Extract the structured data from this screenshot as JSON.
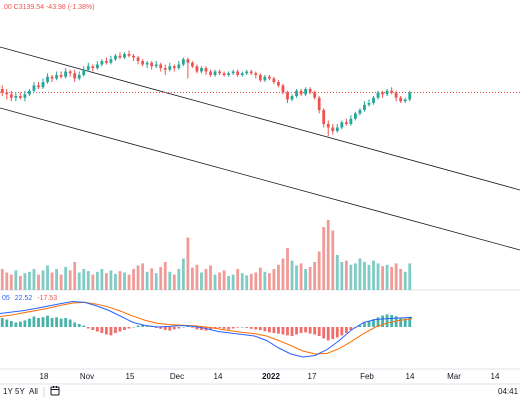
{
  "header": {
    "ohlc_text": ".00  C3139.54  -43.98 (-1.38%)",
    "ohlc_color": "#ef5350"
  },
  "macd_legend": {
    "prefix": "05",
    "value1": "22.52",
    "value2": "-17.53",
    "prefix_color": "#2962ff",
    "value1_color": "#2962ff",
    "value2_color": "#ef5350"
  },
  "range_buttons": [
    "1Y",
    "5Y",
    "All"
  ],
  "calendar_icon": "calendar-icon",
  "clock": "04:41",
  "colors": {
    "up": "#26a69a",
    "down": "#ef5350",
    "volume_up": "#80cbc4",
    "volume_down": "#f19b98",
    "macd_line": "#2962ff",
    "signal_line": "#ff6d00",
    "channel": "#131722",
    "price_line": "#ef5350"
  },
  "chart_data": [
    {
      "type": "candlestick",
      "x_labels": [
        "18",
        "Nov",
        "15",
        "Dec",
        "14",
        "2022",
        "17",
        "Feb",
        "14",
        "Mar",
        "14"
      ],
      "last_close": 3139.54,
      "channel": {
        "upper": {
          "from_date": "2021-09-20",
          "to": "2022-03-31",
          "shape": "descending"
        },
        "lower": {
          "from_date": "2021-09-20",
          "to": "2022-03-31",
          "shape": "descending"
        }
      },
      "candles": [
        [
          0.72,
          0.7,
          0.68,
          0.74
        ],
        [
          0.7,
          0.69,
          0.66,
          0.72
        ],
        [
          0.69,
          0.67,
          0.65,
          0.71
        ],
        [
          0.67,
          0.68,
          0.65,
          0.7
        ],
        [
          0.68,
          0.67,
          0.66,
          0.7
        ],
        [
          0.67,
          0.69,
          0.65,
          0.71
        ],
        [
          0.69,
          0.71,
          0.68,
          0.72
        ],
        [
          0.71,
          0.74,
          0.7,
          0.76
        ],
        [
          0.74,
          0.73,
          0.72,
          0.76
        ],
        [
          0.73,
          0.76,
          0.72,
          0.78
        ],
        [
          0.76,
          0.79,
          0.75,
          0.81
        ],
        [
          0.79,
          0.78,
          0.76,
          0.8
        ],
        [
          0.78,
          0.8,
          0.77,
          0.82
        ],
        [
          0.8,
          0.79,
          0.78,
          0.82
        ],
        [
          0.79,
          0.82,
          0.78,
          0.84
        ],
        [
          0.82,
          0.81,
          0.79,
          0.83
        ],
        [
          0.81,
          0.78,
          0.76,
          0.83
        ],
        [
          0.78,
          0.8,
          0.77,
          0.82
        ],
        [
          0.8,
          0.83,
          0.79,
          0.85
        ],
        [
          0.83,
          0.85,
          0.82,
          0.87
        ],
        [
          0.85,
          0.84,
          0.82,
          0.86
        ],
        [
          0.84,
          0.86,
          0.83,
          0.88
        ],
        [
          0.86,
          0.88,
          0.85,
          0.89
        ],
        [
          0.88,
          0.87,
          0.86,
          0.9
        ],
        [
          0.87,
          0.89,
          0.86,
          0.91
        ],
        [
          0.89,
          0.91,
          0.88,
          0.92
        ],
        [
          0.91,
          0.9,
          0.89,
          0.93
        ],
        [
          0.9,
          0.92,
          0.89,
          0.93
        ],
        [
          0.92,
          0.91,
          0.9,
          0.94
        ],
        [
          0.91,
          0.9,
          0.88,
          0.92
        ],
        [
          0.9,
          0.88,
          0.86,
          0.91
        ],
        [
          0.88,
          0.86,
          0.85,
          0.89
        ],
        [
          0.86,
          0.87,
          0.84,
          0.88
        ],
        [
          0.87,
          0.85,
          0.83,
          0.88
        ],
        [
          0.85,
          0.86,
          0.84,
          0.88
        ],
        [
          0.86,
          0.84,
          0.82,
          0.87
        ],
        [
          0.84,
          0.83,
          0.8,
          0.86
        ],
        [
          0.83,
          0.85,
          0.82,
          0.87
        ],
        [
          0.85,
          0.84,
          0.82,
          0.86
        ],
        [
          0.84,
          0.86,
          0.83,
          0.88
        ],
        [
          0.86,
          0.89,
          0.85,
          0.9
        ],
        [
          0.89,
          0.87,
          0.78,
          0.9
        ],
        [
          0.87,
          0.85,
          0.84,
          0.88
        ],
        [
          0.85,
          0.82,
          0.81,
          0.86
        ],
        [
          0.82,
          0.84,
          0.81,
          0.85
        ],
        [
          0.84,
          0.82,
          0.8,
          0.85
        ],
        [
          0.82,
          0.8,
          0.79,
          0.83
        ],
        [
          0.8,
          0.82,
          0.79,
          0.83
        ],
        [
          0.82,
          0.81,
          0.8,
          0.83
        ],
        [
          0.81,
          0.8,
          0.79,
          0.82
        ],
        [
          0.8,
          0.81,
          0.79,
          0.82
        ],
        [
          0.81,
          0.82,
          0.8,
          0.83
        ],
        [
          0.82,
          0.8,
          0.79,
          0.83
        ],
        [
          0.8,
          0.81,
          0.79,
          0.82
        ],
        [
          0.81,
          0.82,
          0.8,
          0.83
        ],
        [
          0.82,
          0.81,
          0.8,
          0.83
        ],
        [
          0.81,
          0.8,
          0.78,
          0.82
        ],
        [
          0.8,
          0.77,
          0.76,
          0.81
        ],
        [
          0.77,
          0.79,
          0.76,
          0.8
        ],
        [
          0.79,
          0.78,
          0.77,
          0.8
        ],
        [
          0.78,
          0.76,
          0.75,
          0.79
        ],
        [
          0.76,
          0.74,
          0.73,
          0.77
        ],
        [
          0.74,
          0.7,
          0.69,
          0.75
        ],
        [
          0.7,
          0.66,
          0.64,
          0.71
        ],
        [
          0.66,
          0.68,
          0.65,
          0.69
        ],
        [
          0.68,
          0.71,
          0.67,
          0.72
        ],
        [
          0.71,
          0.69,
          0.68,
          0.72
        ],
        [
          0.69,
          0.72,
          0.68,
          0.73
        ],
        [
          0.72,
          0.7,
          0.69,
          0.73
        ],
        [
          0.7,
          0.67,
          0.66,
          0.71
        ],
        [
          0.67,
          0.6,
          0.58,
          0.68
        ],
        [
          0.6,
          0.52,
          0.5,
          0.61
        ],
        [
          0.52,
          0.5,
          0.45,
          0.54
        ],
        [
          0.5,
          0.48,
          0.46,
          0.52
        ],
        [
          0.48,
          0.5,
          0.47,
          0.52
        ],
        [
          0.5,
          0.53,
          0.49,
          0.54
        ],
        [
          0.53,
          0.52,
          0.51,
          0.55
        ],
        [
          0.52,
          0.55,
          0.51,
          0.57
        ],
        [
          0.55,
          0.58,
          0.54,
          0.59
        ],
        [
          0.58,
          0.6,
          0.57,
          0.61
        ],
        [
          0.6,
          0.63,
          0.59,
          0.65
        ],
        [
          0.63,
          0.64,
          0.62,
          0.66
        ],
        [
          0.64,
          0.67,
          0.63,
          0.68
        ],
        [
          0.67,
          0.7,
          0.66,
          0.71
        ],
        [
          0.7,
          0.69,
          0.67,
          0.71
        ],
        [
          0.69,
          0.71,
          0.68,
          0.72
        ],
        [
          0.71,
          0.7,
          0.69,
          0.73
        ],
        [
          0.7,
          0.67,
          0.65,
          0.71
        ],
        [
          0.67,
          0.65,
          0.64,
          0.68
        ],
        [
          0.65,
          0.66,
          0.64,
          0.67
        ],
        [
          0.66,
          0.7,
          0.65,
          0.71
        ]
      ],
      "volume": [
        0.3,
        0.25,
        0.22,
        0.28,
        0.2,
        0.24,
        0.26,
        0.3,
        0.22,
        0.28,
        0.35,
        0.25,
        0.3,
        0.22,
        0.33,
        0.28,
        0.4,
        0.25,
        0.3,
        0.27,
        0.22,
        0.26,
        0.3,
        0.24,
        0.28,
        0.23,
        0.27,
        0.25,
        0.22,
        0.3,
        0.35,
        0.38,
        0.26,
        0.31,
        0.24,
        0.33,
        0.4,
        0.26,
        0.22,
        0.3,
        0.45,
        0.75,
        0.32,
        0.36,
        0.25,
        0.3,
        0.35,
        0.22,
        0.25,
        0.28,
        0.2,
        0.22,
        0.3,
        0.24,
        0.21,
        0.23,
        0.25,
        0.32,
        0.26,
        0.24,
        0.3,
        0.36,
        0.45,
        0.6,
        0.42,
        0.35,
        0.38,
        0.3,
        0.33,
        0.4,
        0.55,
        0.9,
        1.0,
        0.85,
        0.5,
        0.4,
        0.42,
        0.36,
        0.38,
        0.45,
        0.4,
        0.36,
        0.42,
        0.38,
        0.34,
        0.36,
        0.33,
        0.38,
        0.3,
        0.26,
        0.38
      ],
      "macd_hist": [
        0.3,
        0.25,
        0.2,
        0.15,
        0.18,
        0.22,
        0.28,
        0.35,
        0.3,
        0.33,
        0.38,
        0.3,
        0.32,
        0.28,
        0.3,
        0.25,
        0.15,
        0.1,
        0.05,
        -0.05,
        -0.1,
        -0.15,
        -0.2,
        -0.25,
        -0.28,
        -0.2,
        -0.15,
        -0.1,
        -0.05,
        0.0,
        0.05,
        0.08,
        0.04,
        0.02,
        -0.03,
        -0.06,
        -0.1,
        -0.12,
        -0.08,
        -0.05,
        0.0,
        0.05,
        -0.02,
        -0.08,
        -0.1,
        -0.12,
        -0.08,
        -0.05,
        -0.03,
        -0.06,
        -0.08,
        -0.05,
        -0.02,
        0.0,
        -0.03,
        -0.06,
        -0.08,
        -0.1,
        -0.14,
        -0.18,
        -0.2,
        -0.22,
        -0.25,
        -0.28,
        -0.3,
        -0.25,
        -0.2,
        -0.18,
        -0.22,
        -0.25,
        -0.3,
        -0.38,
        -0.45,
        -0.4,
        -0.35,
        -0.28,
        -0.2,
        -0.1,
        -0.02,
        0.06,
        0.14,
        0.2,
        0.26,
        0.32,
        0.38,
        0.42,
        0.4,
        0.36,
        0.3,
        0.28,
        0.34
      ],
      "macd_line": [
        0.45,
        0.5,
        0.55,
        0.62,
        0.7,
        0.78,
        0.85,
        0.82,
        0.7,
        0.55,
        0.35,
        0.15,
        0.05,
        0.0,
        0.02,
        0.05,
        0.02,
        -0.05,
        -0.15,
        -0.2,
        -0.25,
        -0.3,
        -0.45,
        -0.7,
        -0.9,
        -1.0,
        -0.95,
        -0.75,
        -0.45,
        -0.1,
        0.15,
        0.25,
        0.28,
        0.3,
        0.32
      ],
      "signal_line": [
        0.35,
        0.4,
        0.48,
        0.55,
        0.63,
        0.72,
        0.8,
        0.82,
        0.76,
        0.66,
        0.52,
        0.36,
        0.22,
        0.12,
        0.08,
        0.06,
        0.04,
        0.0,
        -0.06,
        -0.12,
        -0.18,
        -0.22,
        -0.3,
        -0.45,
        -0.62,
        -0.8,
        -0.9,
        -0.88,
        -0.72,
        -0.48,
        -0.22,
        0.0,
        0.14,
        0.22,
        0.28
      ]
    }
  ]
}
